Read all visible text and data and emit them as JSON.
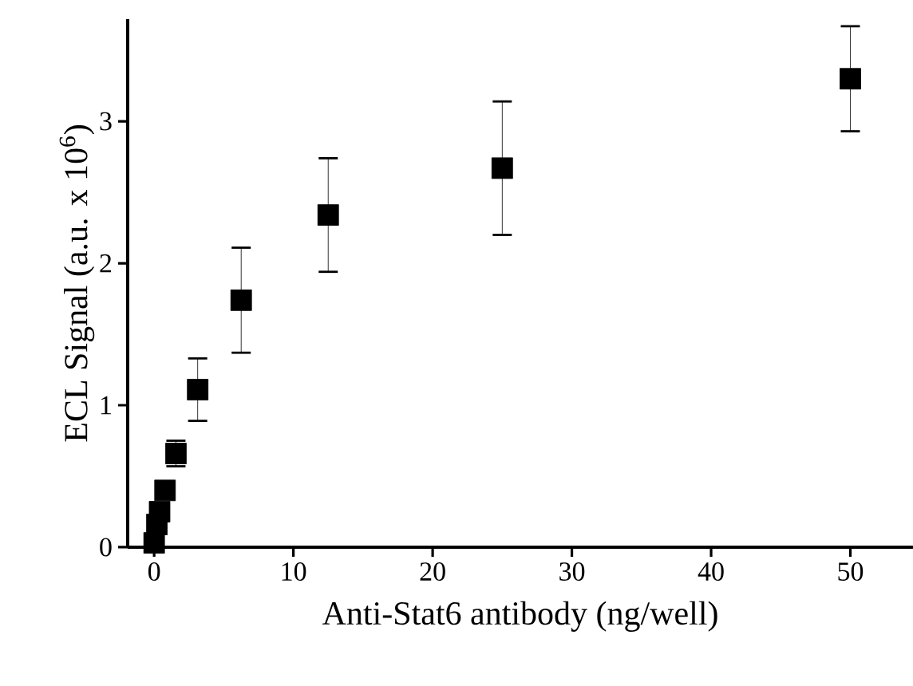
{
  "chart_data": {
    "type": "scatter",
    "xlabel": "Anti-Stat6 antibody (ng/well)",
    "ylabel": "ECL Signal (a.u. x 10$^{6}$)",
    "x": [
      0,
      0.195,
      0.39,
      0.78,
      1.5625,
      3.125,
      6.25,
      12.5,
      25,
      50
    ],
    "values": [
      0.03,
      0.16,
      0.25,
      0.4,
      0.66,
      1.11,
      1.74,
      2.34,
      2.67,
      3.3
    ],
    "errors": [
      null,
      null,
      null,
      null,
      0.09,
      0.22,
      0.37,
      0.4,
      0.47,
      0.37
    ],
    "color": "#000000",
    "marker": "square",
    "xlim": [
      -1.9,
      54.5
    ],
    "ylim": [
      0,
      3.72
    ],
    "xticks": [
      0,
      10,
      20,
      30,
      40,
      50
    ],
    "yticks": [
      0,
      1,
      2,
      3
    ]
  }
}
